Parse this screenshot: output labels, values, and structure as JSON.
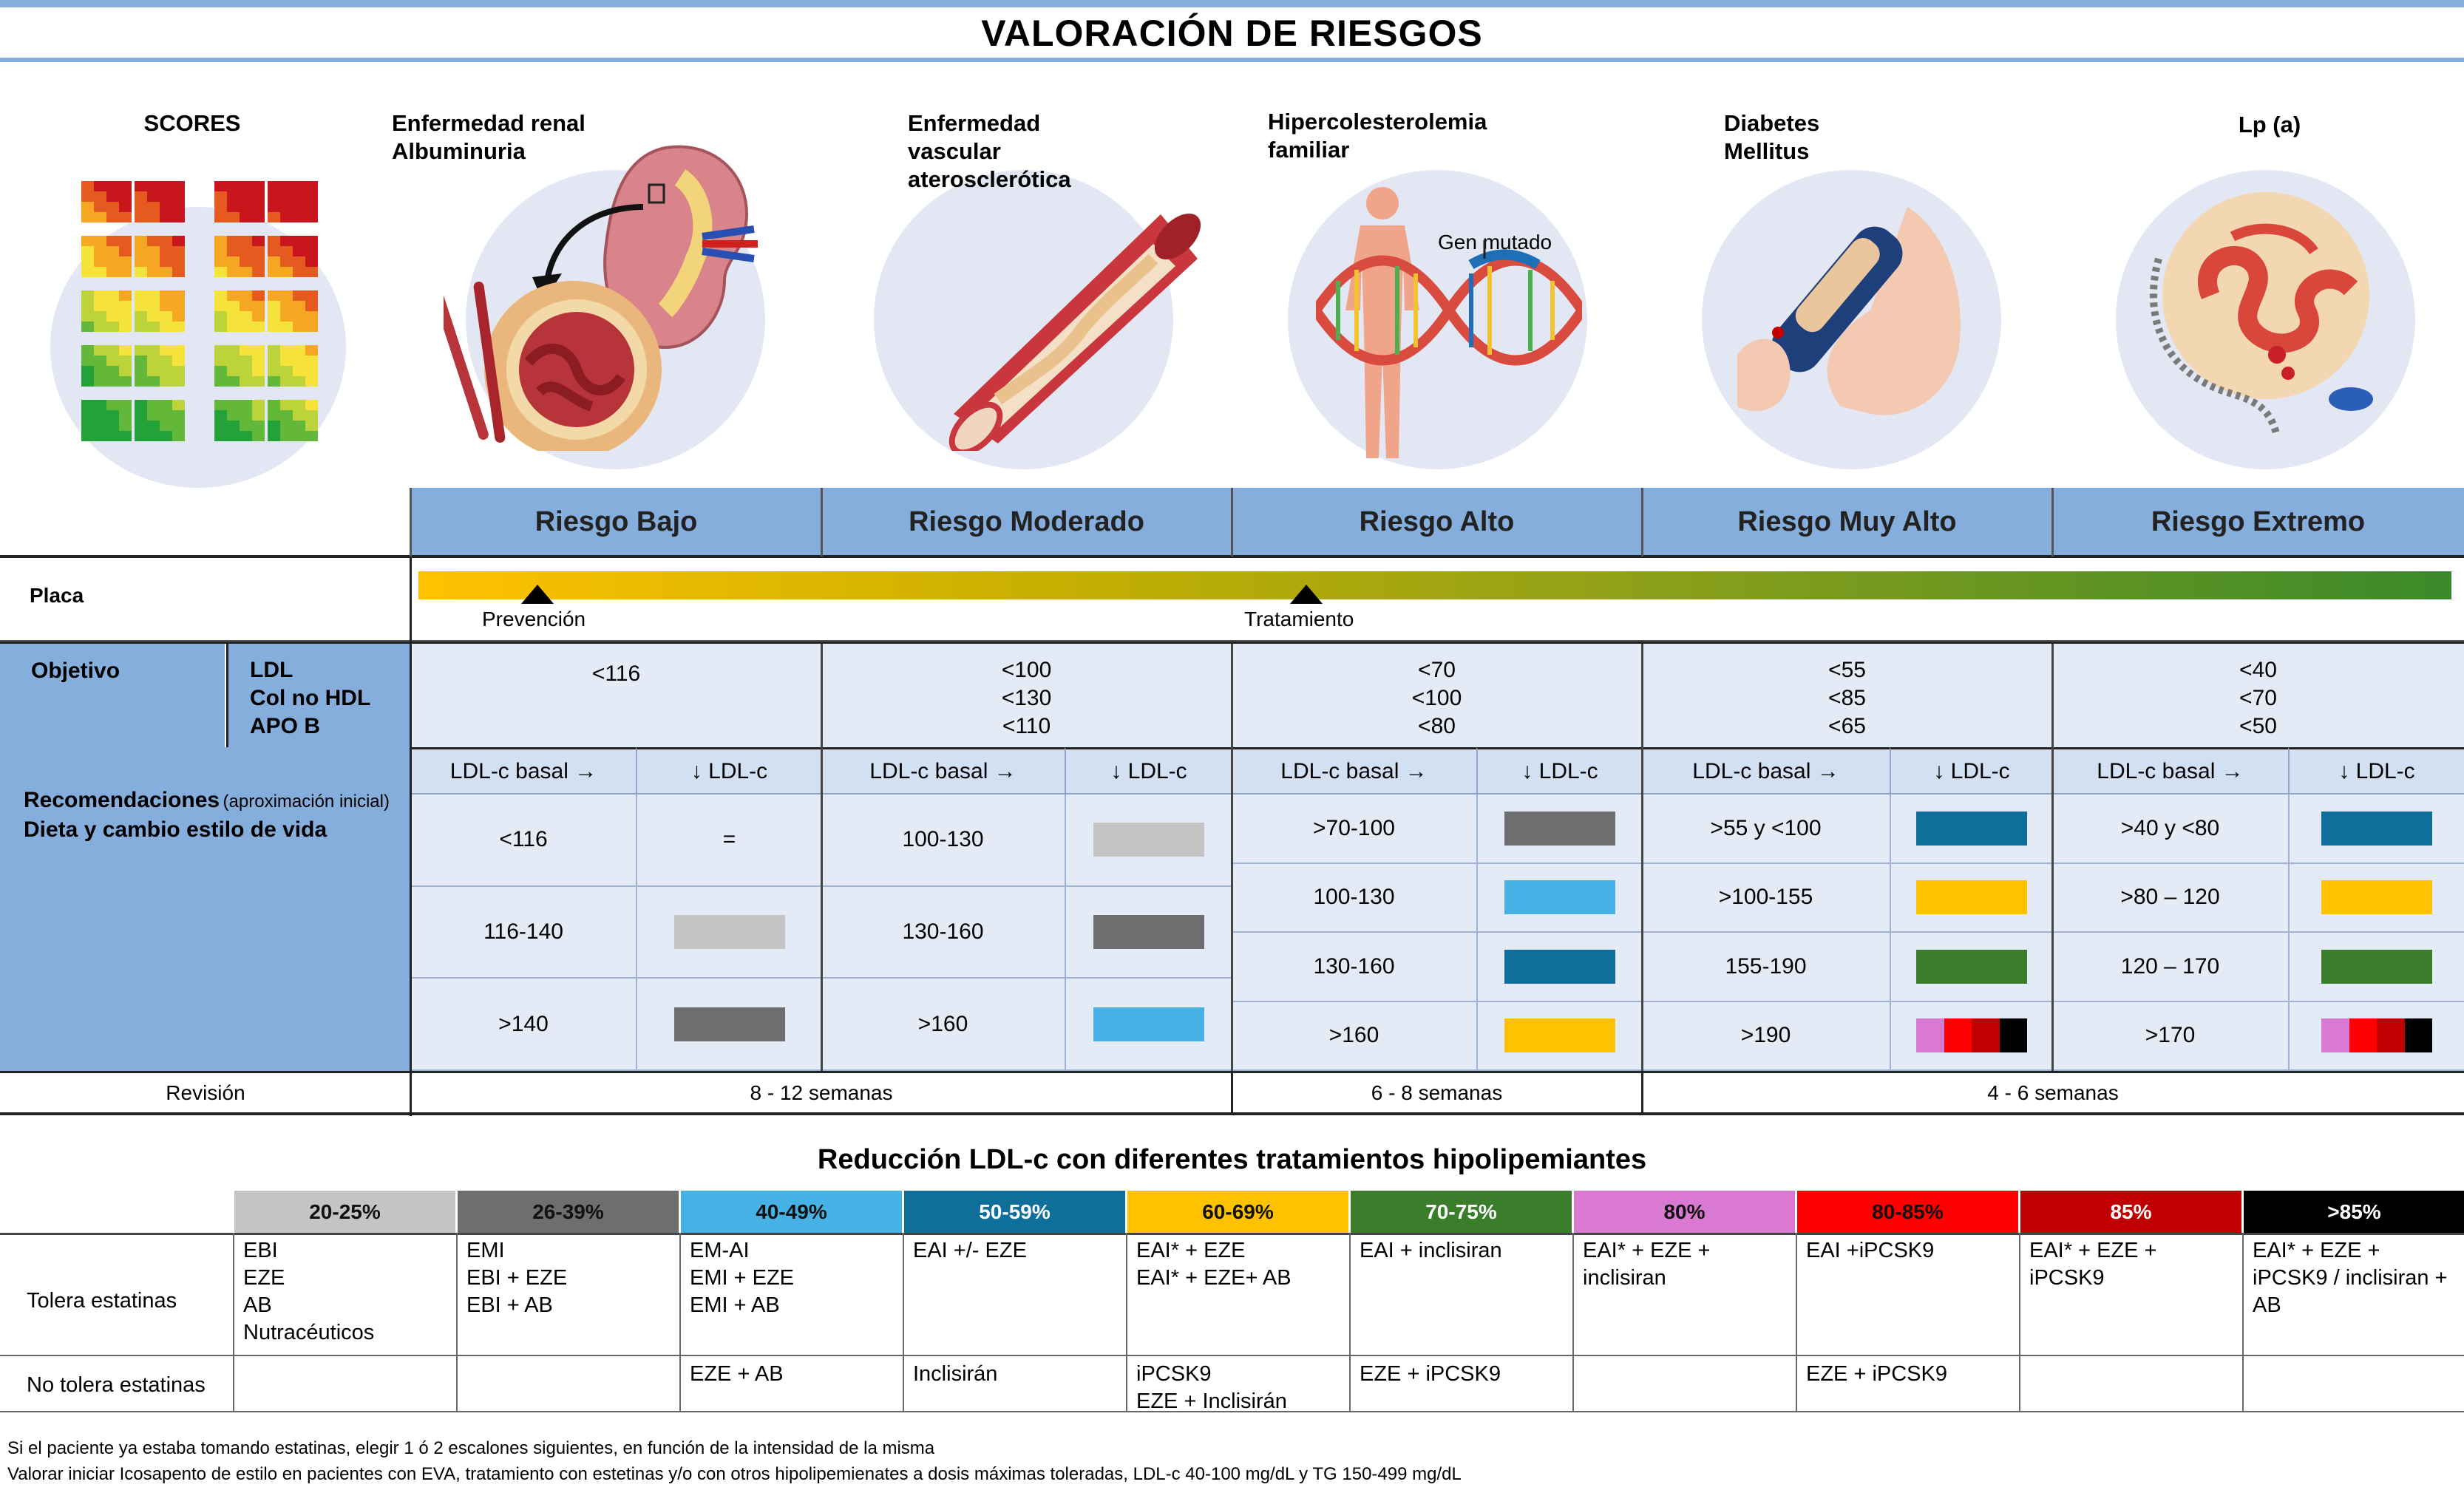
{
  "title": "VALORACIÓN DE RIESGOS",
  "categories": [
    {
      "label": "SCORES",
      "icon": "risk-score-grid-icon"
    },
    {
      "label": "Enfermedad renal\nAlbuminuria",
      "icon": "kidney-icon"
    },
    {
      "label": "Enfermedad\nvascular\naterosclerótica",
      "icon": "artery-icon"
    },
    {
      "label": "Hipercolesterolemia\nfamiliar",
      "icon": "dna-human-icon",
      "annotation": "Gen mutado"
    },
    {
      "label": "Diabetes\nMellitus",
      "icon": "glucometer-icon"
    },
    {
      "label": "Lp (a)",
      "icon": "lipoprotein-icon"
    }
  ],
  "risk_levels": [
    "Riesgo Bajo",
    "Riesgo Moderado",
    "Riesgo Alto",
    "Riesgo Muy Alto",
    "Riesgo Extremo"
  ],
  "plaque": {
    "label": "Placa",
    "markers": [
      "Prevención",
      "Tratamiento"
    ]
  },
  "objective": {
    "label": "Objetivo",
    "params": [
      "LDL",
      "Col no HDL",
      "APO B"
    ],
    "values": [
      "<116",
      "<100\n<130\n<110",
      "<70\n<100\n<80",
      "<55\n<85\n<65",
      "<40\n<70\n<50"
    ]
  },
  "recommendations": {
    "label": "Recomendaciones",
    "label_note": "(aproximación inicial)",
    "sublabel": "Dieta y cambio estilo de vida",
    "col_basal": "LDL-c basal →",
    "col_reduction": "↓ LDL-c",
    "groups": [
      {
        "rows": [
          {
            "basal": "<116",
            "sym": "="
          },
          {
            "basal": "116-140",
            "sw": [
              "#c4c4c4"
            ]
          },
          {
            "basal": ">140",
            "sw": [
              "#6e6e70"
            ]
          }
        ]
      },
      {
        "rows": [
          {
            "basal": "100-130",
            "sw": [
              "#c4c4c4"
            ]
          },
          {
            "basal": "130-160",
            "sw": [
              "#6e6e70"
            ]
          },
          {
            "basal": ">160",
            "sw": [
              "#45b1e4"
            ]
          }
        ]
      },
      {
        "rows": [
          {
            "basal": ">70-100",
            "sw": [
              "#6e6e70"
            ]
          },
          {
            "basal": "100-130",
            "sw": [
              "#45b1e4"
            ]
          },
          {
            "basal": "130-160",
            "sw": [
              "#0f6f9b"
            ]
          },
          {
            "basal": ">160",
            "sw": [
              "#ffc200"
            ]
          }
        ]
      },
      {
        "rows": [
          {
            "basal": ">55 y <100",
            "sw": [
              "#0f6f9b"
            ]
          },
          {
            "basal": ">100-155",
            "sw": [
              "#ffc200"
            ]
          },
          {
            "basal": "155-190",
            "sw": [
              "#3a7d2a"
            ]
          },
          {
            "basal": ">190",
            "sw": [
              "#d979d1",
              "#ff0000",
              "#c00000",
              "#000000"
            ]
          }
        ]
      },
      {
        "rows": [
          {
            "basal": ">40 y <80",
            "sw": [
              "#0f6f9b"
            ]
          },
          {
            "basal": ">80 – 120",
            "sw": [
              "#ffc200"
            ]
          },
          {
            "basal": "120 – 170",
            "sw": [
              "#3a7d2a"
            ]
          },
          {
            "basal": ">170",
            "sw": [
              "#d979d1",
              "#ff0000",
              "#c00000",
              "#000000"
            ]
          }
        ]
      }
    ]
  },
  "review": {
    "label": "Revisión",
    "values": [
      "8 - 12 semanas",
      "6 - 8 semanas",
      "4 - 6 semanas"
    ]
  },
  "treatments": {
    "title": "Reducción LDL-c con diferentes tratamientos hipolipemiantes",
    "row_labels": [
      "Tolera estatinas",
      "No tolera estatinas"
    ],
    "columns": [
      {
        "pct": "20-25%",
        "color": "#c4c4c4",
        "tol": "EBI\nEZE\nAB\nNutracéuticos",
        "notol": ""
      },
      {
        "pct": "26-39%",
        "color": "#6e6e70",
        "tol": "EMI\nEBI + EZE\nEBI + AB",
        "notol": ""
      },
      {
        "pct": "40-49%",
        "color": "#45b1e4",
        "tol": "EM-AI\nEMI + EZE\nEMI + AB",
        "notol": "EZE + AB"
      },
      {
        "pct": "50-59%",
        "color": "#0f6f9b",
        "tol": "EAI +/- EZE",
        "notol": "Inclisirán"
      },
      {
        "pct": "60-69%",
        "color": "#ffc200",
        "tol": "EAI* + EZE\nEAI* + EZE+ AB",
        "notol": "iPCSK9\nEZE + Inclisirán"
      },
      {
        "pct": "70-75%",
        "color": "#3a7d2a",
        "tol": "EAI + inclisiran",
        "notol": "EZE + iPCSK9"
      },
      {
        "pct": "80%",
        "color": "#d979d1",
        "tol": "EAI* + EZE + inclisiran",
        "notol": ""
      },
      {
        "pct": "80-85%",
        "color": "#ff0000",
        "tol": "EAI +iPCSK9",
        "notol": "EZE + iPCSK9"
      },
      {
        "pct": "85%",
        "color": "#c00000",
        "tol": "EAI* + EZE + iPCSK9",
        "notol": ""
      },
      {
        "pct": ">85%",
        "color": "#000000",
        "tol": "EAI* + EZE +\niPCSK9 / inclisiran +\nAB",
        "notol": ""
      }
    ]
  },
  "footnotes": [
    "Si el paciente ya estaba tomando estatinas, elegir 1 ó 2 escalones siguientes, en función de la intensidad de la misma",
    "Valorar iniciar Icosapento de estilo en pacientes con EVA, tratamiento con estetinas y/o con otros hipolipemienates a dosis máximas toleradas, LDL-c 40-100 mg/dL y TG 150-499 mg/dL"
  ]
}
